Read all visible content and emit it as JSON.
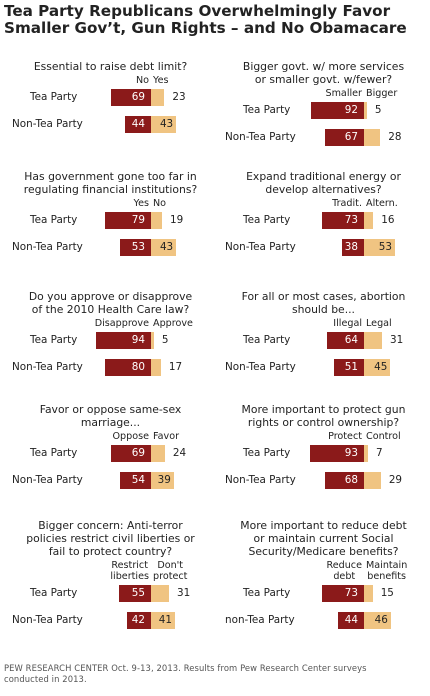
{
  "title": [
    "Tea Party Republicans Overwhelmingly Favor",
    "Smaller Gov’t, Gun Rights – and No Obamacare"
  ],
  "footer": [
    "PEW RESEARCH CENTER Oct. 9-13, 2013. Results from Pew Research Center surveys",
    "conducted in 2013."
  ],
  "colors": {
    "left": "#8b1a1a",
    "right": "#f0c482"
  },
  "chart_data": [
    {
      "type": "bar",
      "question": [
        "Essential to raise debt limit?"
      ],
      "left_label": [
        "No"
      ],
      "right_label": [
        "Yes"
      ],
      "rows": [
        {
          "label": "Tea Party",
          "left": 69,
          "right": 23
        },
        {
          "label": "Non-Tea Party",
          "left": 44,
          "right": 43
        }
      ]
    },
    {
      "type": "bar",
      "question": [
        "Bigger govt. w/ more services",
        "or smaller govt. w/fewer?"
      ],
      "left_label": [
        "Smaller"
      ],
      "right_label": [
        "Bigger"
      ],
      "rows": [
        {
          "label": "Tea Party",
          "left": 92,
          "right": 5
        },
        {
          "label": "Non-Tea Party",
          "left": 67,
          "right": 28
        }
      ]
    },
    {
      "type": "bar",
      "question": [
        "Has government gone too far in",
        "regulating financial institutions?"
      ],
      "left_label": [
        "Yes"
      ],
      "right_label": [
        "No"
      ],
      "rows": [
        {
          "label": "Tea Party",
          "left": 79,
          "right": 19
        },
        {
          "label": "Non-Tea Party",
          "left": 53,
          "right": 43
        }
      ]
    },
    {
      "type": "bar",
      "question": [
        "Expand traditional energy or",
        "develop alternatives?"
      ],
      "left_label": [
        "Tradit."
      ],
      "right_label": [
        "Altern."
      ],
      "rows": [
        {
          "label": "Tea Party",
          "left": 73,
          "right": 16
        },
        {
          "label": "Non-Tea Party",
          "left": 38,
          "right": 53
        }
      ]
    },
    {
      "type": "bar",
      "question": [
        "Do you approve or disapprove",
        "of the 2010 Health Care law?"
      ],
      "left_label": [
        "Disapprove"
      ],
      "right_label": [
        "Approve"
      ],
      "rows": [
        {
          "label": "Tea Party",
          "left": 94,
          "right": 5
        },
        {
          "label": "Non-Tea Party",
          "left": 80,
          "right": 17
        }
      ]
    },
    {
      "type": "bar",
      "question": [
        "For all or most cases, abortion",
        "should be..."
      ],
      "left_label": [
        "Illegal"
      ],
      "right_label": [
        "Legal"
      ],
      "rows": [
        {
          "label": "Tea Party",
          "left": 64,
          "right": 31
        },
        {
          "label": "Non-Tea Party",
          "left": 51,
          "right": 45
        }
      ]
    },
    {
      "type": "bar",
      "question": [
        "Favor or oppose same-sex",
        "marriage..."
      ],
      "left_label": [
        "Oppose"
      ],
      "right_label": [
        "Favor"
      ],
      "rows": [
        {
          "label": "Tea Party",
          "left": 69,
          "right": 24
        },
        {
          "label": "Non-Tea Party",
          "left": 54,
          "right": 39
        }
      ]
    },
    {
      "type": "bar",
      "question": [
        "More important to protect gun",
        "rights or control ownership?"
      ],
      "left_label": [
        "Protect"
      ],
      "right_label": [
        "Control"
      ],
      "rows": [
        {
          "label": "Tea Party",
          "left": 93,
          "right": 7
        },
        {
          "label": "Non-Tea Party",
          "left": 68,
          "right": 29
        }
      ]
    },
    {
      "type": "bar",
      "question": [
        "Bigger concern: Anti-terror",
        "policies restrict civil liberties or",
        "fail to protect country?"
      ],
      "left_label": [
        "Restrict",
        "liberties"
      ],
      "right_label": [
        "Don't",
        "protect"
      ],
      "rows": [
        {
          "label": "Tea Party",
          "left": 55,
          "right": 31
        },
        {
          "label": "Non-Tea Party",
          "left": 42,
          "right": 41
        }
      ]
    },
    {
      "type": "bar",
      "question": [
        "More important to reduce debt",
        "or maintain current Social",
        "Security/Medicare benefits?"
      ],
      "left_label": [
        "Reduce",
        "debt"
      ],
      "right_label": [
        "Maintain",
        "benefits"
      ],
      "rows": [
        {
          "label": "Tea Party",
          "left": 73,
          "right": 15
        },
        {
          "label": "non-Tea Party",
          "left": 44,
          "right": 46
        }
      ]
    }
  ]
}
